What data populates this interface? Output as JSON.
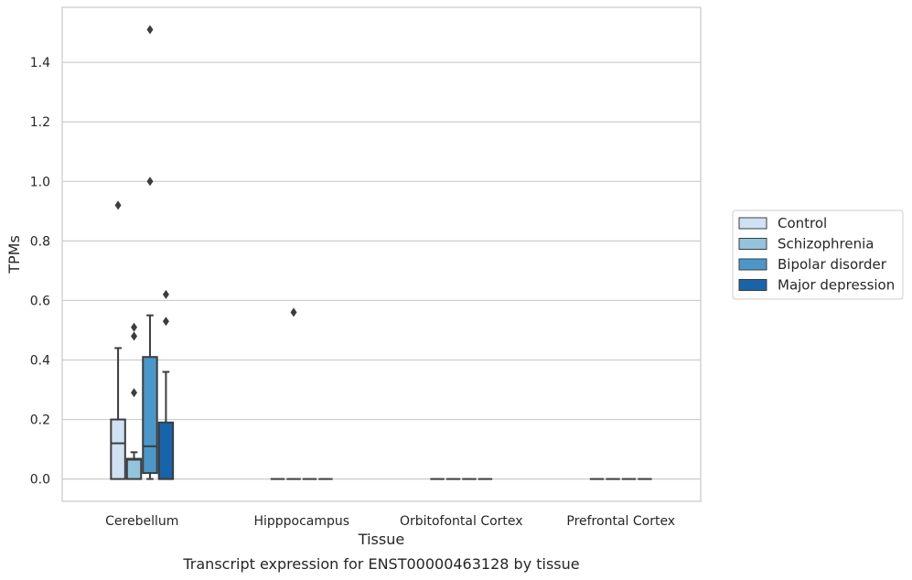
{
  "caption": "Transcript expression for ENST00000463128 by tissue",
  "chart_data": {
    "type": "box",
    "xlabel": "Tissue",
    "ylabel": "TPMs",
    "ylim": [
      -0.075,
      1.585
    ],
    "yticks": [
      0.0,
      0.2,
      0.4,
      0.6,
      0.8,
      1.0,
      1.2,
      1.4
    ],
    "ytick_labels": [
      "0.0",
      "0.2",
      "0.4",
      "0.6",
      "0.8",
      "1.0",
      "1.2",
      "1.4"
    ],
    "grid": "horizontal",
    "legend_position": "right",
    "categories": [
      "Cerebellum",
      "Hipppocampus",
      "Orbitofontal Cortex",
      "Prefrontal Cortex"
    ],
    "series": [
      {
        "name": "Control",
        "color": "#cfe1f2",
        "boxes": [
          {
            "whisker_low": 0.0,
            "q1": 0.0,
            "median": 0.12,
            "q3": 0.2,
            "whisker_high": 0.44,
            "outliers": [
              0.92
            ]
          },
          {
            "whisker_low": 0.0,
            "q1": 0.0,
            "median": 0.0,
            "q3": 0.0,
            "whisker_high": 0.0,
            "outliers": []
          },
          {
            "whisker_low": 0.0,
            "q1": 0.0,
            "median": 0.0,
            "q3": 0.0,
            "whisker_high": 0.0,
            "outliers": []
          },
          {
            "whisker_low": 0.0,
            "q1": 0.0,
            "median": 0.0,
            "q3": 0.0,
            "whisker_high": 0.0,
            "outliers": []
          }
        ]
      },
      {
        "name": "Schizophrenia",
        "color": "#93c4de",
        "boxes": [
          {
            "whisker_low": 0.0,
            "q1": 0.0,
            "median": 0.065,
            "q3": 0.068,
            "whisker_high": 0.09,
            "outliers": [
              0.29,
              0.48,
              0.51
            ]
          },
          {
            "whisker_low": 0.0,
            "q1": 0.0,
            "median": 0.0,
            "q3": 0.0,
            "whisker_high": 0.0,
            "outliers": [
              0.56
            ]
          },
          {
            "whisker_low": 0.0,
            "q1": 0.0,
            "median": 0.0,
            "q3": 0.0,
            "whisker_high": 0.0,
            "outliers": []
          },
          {
            "whisker_low": 0.0,
            "q1": 0.0,
            "median": 0.0,
            "q3": 0.0,
            "whisker_high": 0.0,
            "outliers": []
          }
        ]
      },
      {
        "name": "Bipolar disorder",
        "color": "#4a98c9",
        "boxes": [
          {
            "whisker_low": 0.0,
            "q1": 0.02,
            "median": 0.11,
            "q3": 0.41,
            "whisker_high": 0.55,
            "outliers": [
              1.0,
              1.51
            ]
          },
          {
            "whisker_low": 0.0,
            "q1": 0.0,
            "median": 0.0,
            "q3": 0.0,
            "whisker_high": 0.0,
            "outliers": []
          },
          {
            "whisker_low": 0.0,
            "q1": 0.0,
            "median": 0.0,
            "q3": 0.0,
            "whisker_high": 0.0,
            "outliers": []
          },
          {
            "whisker_low": 0.0,
            "q1": 0.0,
            "median": 0.0,
            "q3": 0.0,
            "whisker_high": 0.0,
            "outliers": []
          }
        ]
      },
      {
        "name": "Major depression",
        "color": "#1764ab",
        "boxes": [
          {
            "whisker_low": 0.0,
            "q1": 0.0,
            "median": 0.0,
            "q3": 0.19,
            "whisker_high": 0.36,
            "outliers": [
              0.53,
              0.62
            ]
          },
          {
            "whisker_low": 0.0,
            "q1": 0.0,
            "median": 0.0,
            "q3": 0.0,
            "whisker_high": 0.0,
            "outliers": []
          },
          {
            "whisker_low": 0.0,
            "q1": 0.0,
            "median": 0.0,
            "q3": 0.0,
            "whisker_high": 0.0,
            "outliers": []
          },
          {
            "whisker_low": 0.0,
            "q1": 0.0,
            "median": 0.0,
            "q3": 0.0,
            "whisker_high": 0.0,
            "outliers": []
          }
        ]
      }
    ]
  }
}
